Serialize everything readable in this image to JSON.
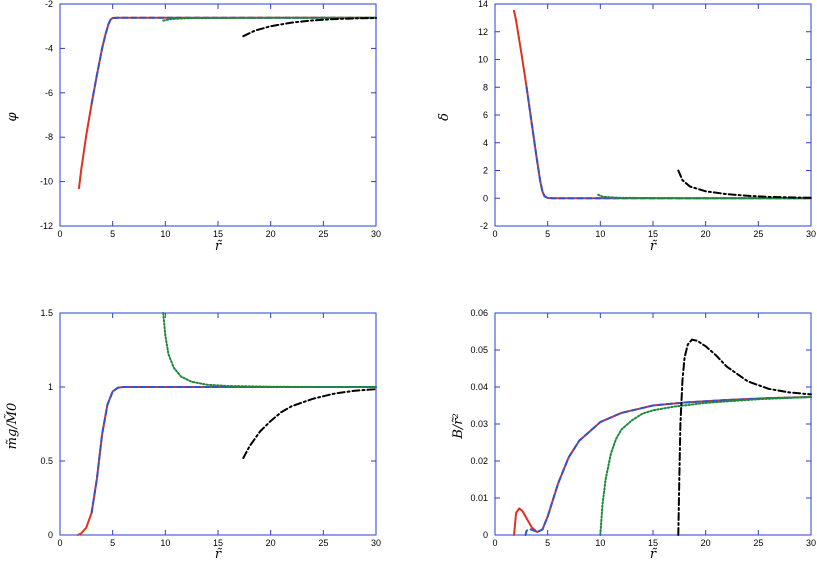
{
  "colors": {
    "frame": "#2a3fd6",
    "red_solid": "#e0301e",
    "blue_dashed": "#2a55d6",
    "green_dotted": "#1e8a3a",
    "black_dashdot": "#000000"
  },
  "chart_data": [
    {
      "type": "line",
      "title": "",
      "xlabel": "r̃",
      "ylabel": "φ",
      "xlim": [
        0,
        30
      ],
      "ylim": [
        -12,
        -2
      ],
      "xticks": [
        0,
        5,
        10,
        15,
        20,
        25,
        30
      ],
      "yticks": [
        -12,
        -10,
        -8,
        -6,
        -4,
        -2
      ],
      "grid": false,
      "series": [
        {
          "style": "red-solid",
          "x": [
            1.8,
            2.0,
            2.5,
            3.0,
            3.5,
            4.0,
            4.3,
            4.6,
            4.8,
            5.0,
            5.5,
            6.0,
            8.0,
            10.0,
            15.0,
            20.0,
            25.0,
            30.0
          ],
          "y": [
            -10.3,
            -9.5,
            -7.9,
            -6.5,
            -5.2,
            -4.0,
            -3.4,
            -2.9,
            -2.7,
            -2.63,
            -2.62,
            -2.62,
            -2.62,
            -2.62,
            -2.62,
            -2.62,
            -2.62,
            -2.62
          ]
        },
        {
          "style": "blue-dashed",
          "x": [
            3.0,
            3.5,
            4.0,
            4.3,
            4.6,
            4.8,
            5.0,
            5.5,
            6.0,
            8.0,
            10.0,
            15.0,
            20.0,
            25.0,
            30.0
          ],
          "y": [
            -6.5,
            -5.2,
            -4.0,
            -3.4,
            -2.9,
            -2.7,
            -2.63,
            -2.62,
            -2.62,
            -2.62,
            -2.62,
            -2.62,
            -2.62,
            -2.62,
            -2.62
          ]
        },
        {
          "style": "green-dotted",
          "x": [
            9.8,
            10.5,
            12.0,
            15.0,
            20.0,
            25.0,
            30.0
          ],
          "y": [
            -2.75,
            -2.68,
            -2.64,
            -2.63,
            -2.62,
            -2.62,
            -2.62
          ]
        },
        {
          "style": "black-dashdot",
          "x": [
            17.4,
            18.5,
            20.0,
            22.0,
            24.0,
            26.0,
            28.0,
            30.0
          ],
          "y": [
            -3.45,
            -3.2,
            -3.0,
            -2.84,
            -2.74,
            -2.68,
            -2.65,
            -2.63
          ]
        }
      ]
    },
    {
      "type": "line",
      "title": "",
      "xlabel": "r̃",
      "ylabel": "δ",
      "xlim": [
        0,
        30
      ],
      "ylim": [
        -2,
        14
      ],
      "xticks": [
        0,
        5,
        10,
        15,
        20,
        25,
        30
      ],
      "yticks": [
        -2,
        0,
        2,
        4,
        6,
        8,
        10,
        12,
        14
      ],
      "grid": false,
      "series": [
        {
          "style": "red-solid",
          "x": [
            1.8,
            2.0,
            2.5,
            3.0,
            3.5,
            4.0,
            4.3,
            4.5,
            4.7,
            5.0,
            5.5,
            6.0,
            10.0,
            15.0,
            20.0,
            25.0,
            30.0
          ],
          "y": [
            13.5,
            12.8,
            10.5,
            8.0,
            5.3,
            2.7,
            1.2,
            0.5,
            0.15,
            0.02,
            0.0,
            0.0,
            0.0,
            0.0,
            0.0,
            0.0,
            0.0
          ]
        },
        {
          "style": "blue-dashed",
          "x": [
            3.0,
            3.5,
            4.0,
            4.3,
            4.5,
            4.7,
            5.0,
            5.5,
            6.0,
            10.0,
            15.0,
            20.0,
            25.0,
            30.0
          ],
          "y": [
            8.0,
            5.3,
            2.7,
            1.2,
            0.5,
            0.15,
            0.02,
            0.0,
            0.0,
            0.0,
            0.0,
            0.0,
            0.0,
            0.0
          ]
        },
        {
          "style": "green-dotted",
          "x": [
            9.8,
            10.2,
            11.0,
            12.0,
            15.0,
            20.0,
            25.0,
            30.0
          ],
          "y": [
            0.25,
            0.12,
            0.06,
            0.03,
            0.01,
            0.0,
            0.0,
            0.0
          ]
        },
        {
          "style": "black-dashdot",
          "x": [
            17.4,
            17.8,
            18.5,
            20.0,
            22.0,
            24.0,
            26.0,
            28.0,
            30.0
          ],
          "y": [
            2.0,
            1.3,
            0.85,
            0.5,
            0.3,
            0.18,
            0.1,
            0.06,
            0.03
          ]
        }
      ]
    },
    {
      "type": "line",
      "title": "",
      "xlabel": "r̃",
      "ylabel": "m̃g/M̃0",
      "xlim": [
        0,
        30
      ],
      "ylim": [
        0,
        1.5
      ],
      "xticks": [
        0,
        5,
        10,
        15,
        20,
        25,
        30
      ],
      "yticks": [
        0,
        0.5,
        1,
        1.5
      ],
      "grid": false,
      "series": [
        {
          "style": "red-solid",
          "x": [
            1.7,
            2.0,
            2.5,
            3.0,
            3.5,
            4.0,
            4.5,
            5.0,
            5.5,
            6.0,
            7.0,
            10.0,
            15.0,
            20.0,
            25.0,
            30.0
          ],
          "y": [
            0.0,
            0.01,
            0.05,
            0.15,
            0.38,
            0.68,
            0.88,
            0.97,
            0.995,
            1.0,
            1.0,
            1.0,
            1.0,
            1.0,
            1.0,
            1.0
          ]
        },
        {
          "style": "blue-dashed",
          "x": [
            3.0,
            3.5,
            4.0,
            4.5,
            5.0,
            5.5,
            6.0,
            7.0,
            10.0,
            15.0,
            20.0,
            25.0,
            30.0
          ],
          "y": [
            0.15,
            0.38,
            0.68,
            0.88,
            0.97,
            0.995,
            1.0,
            1.0,
            1.0,
            1.0,
            1.0,
            1.0,
            1.0
          ]
        },
        {
          "style": "green-dotted",
          "x": [
            9.8,
            10.0,
            10.3,
            10.8,
            11.5,
            12.5,
            14.0,
            16.0,
            20.0,
            25.0,
            30.0
          ],
          "y": [
            1.5,
            1.35,
            1.22,
            1.13,
            1.07,
            1.035,
            1.015,
            1.007,
            1.002,
            1.0,
            1.0
          ]
        },
        {
          "style": "black-dashdot",
          "x": [
            17.4,
            18.0,
            19.0,
            20.0,
            21.0,
            22.0,
            24.0,
            26.0,
            28.0,
            30.0
          ],
          "y": [
            0.52,
            0.6,
            0.7,
            0.77,
            0.83,
            0.87,
            0.92,
            0.955,
            0.975,
            0.985
          ]
        }
      ]
    },
    {
      "type": "line",
      "title": "",
      "xlabel": "r̃",
      "ylabel": "B/r̃²",
      "xlim": [
        0,
        30
      ],
      "ylim": [
        0,
        0.06
      ],
      "xticks": [
        0,
        5,
        10,
        15,
        20,
        25,
        30
      ],
      "yticks": [
        0,
        0.01,
        0.02,
        0.03,
        0.04,
        0.05,
        0.06
      ],
      "grid": false,
      "series": [
        {
          "style": "red-solid",
          "x": [
            1.8,
            2.0,
            2.3,
            2.6,
            3.0,
            3.5,
            4.0,
            4.5,
            5.0,
            5.5,
            6.0,
            7.0,
            8.0,
            10.0,
            12.0,
            15.0,
            18.0,
            22.0,
            26.0,
            30.0
          ],
          "y": [
            0.0,
            0.006,
            0.0072,
            0.0065,
            0.0045,
            0.002,
            0.0008,
            0.0015,
            0.005,
            0.0095,
            0.014,
            0.021,
            0.0255,
            0.0305,
            0.033,
            0.035,
            0.0358,
            0.0365,
            0.037,
            0.0373
          ]
        },
        {
          "style": "blue-dashed",
          "x": [
            2.9,
            3.0,
            3.3,
            3.7,
            4.0,
            4.5,
            5.0,
            5.5,
            6.0,
            7.0,
            8.0,
            10.0,
            12.0,
            15.0,
            18.0,
            22.0,
            26.0,
            30.0
          ],
          "y": [
            0.0,
            0.0012,
            0.0016,
            0.0012,
            0.0008,
            0.0015,
            0.005,
            0.0095,
            0.014,
            0.021,
            0.0255,
            0.0305,
            0.033,
            0.035,
            0.0358,
            0.0365,
            0.037,
            0.0373
          ]
        },
        {
          "style": "green-dotted",
          "x": [
            10.0,
            10.2,
            10.5,
            11.0,
            11.5,
            12.0,
            13.0,
            14.0,
            15.0,
            17.0,
            20.0,
            25.0,
            30.0
          ],
          "y": [
            0.0,
            0.008,
            0.015,
            0.022,
            0.026,
            0.0285,
            0.031,
            0.0328,
            0.0337,
            0.0347,
            0.0357,
            0.0367,
            0.0373
          ]
        },
        {
          "style": "black-dashdot",
          "x": [
            17.4,
            17.5,
            17.6,
            17.8,
            18.0,
            18.3,
            18.7,
            19.2,
            20.0,
            21.0,
            22.0,
            24.0,
            26.0,
            28.0,
            30.0
          ],
          "y": [
            0.0,
            0.015,
            0.03,
            0.042,
            0.048,
            0.0515,
            0.0528,
            0.0525,
            0.051,
            0.0485,
            0.0455,
            0.0415,
            0.0395,
            0.0385,
            0.038
          ]
        }
      ]
    }
  ]
}
